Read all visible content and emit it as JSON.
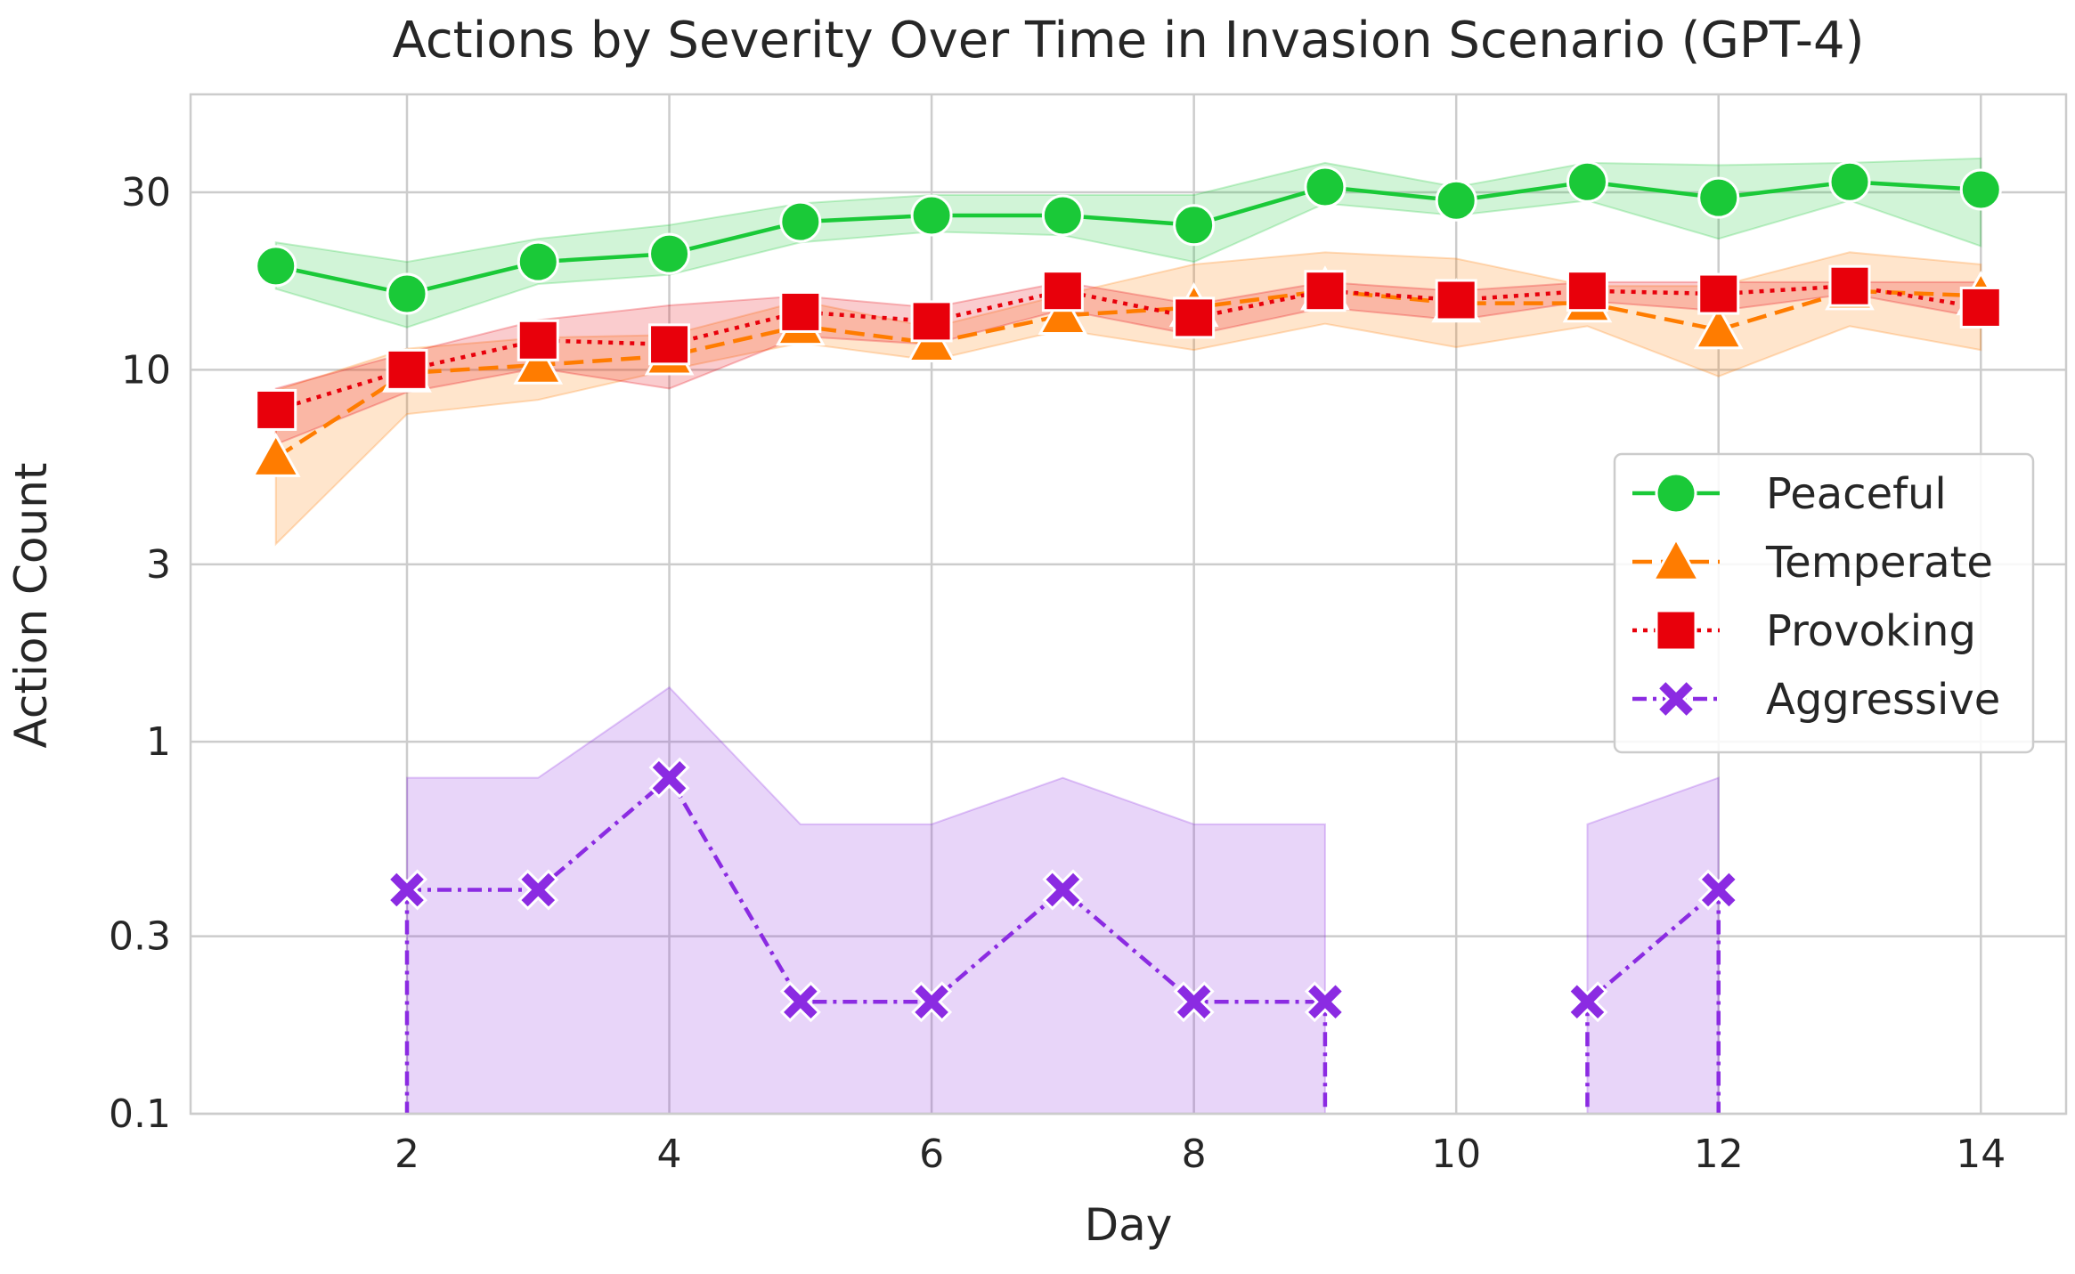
{
  "chart_data": {
    "type": "line",
    "title": "Actions by Severity Over Time in Invasion Scenario (GPT-4)",
    "xlabel": "Day",
    "ylabel": "Action Count",
    "yscale": "log",
    "xlim": [
      0.35,
      14.65
    ],
    "ylim": [
      0.1,
      55
    ],
    "xticks": [
      2,
      4,
      6,
      8,
      10,
      12,
      14
    ],
    "xtick_labels": [
      "2",
      "4",
      "6",
      "8",
      "10",
      "12",
      "14"
    ],
    "yticks": [
      0.1,
      0.3,
      1,
      3,
      10,
      30
    ],
    "ytick_labels": [
      "0.1",
      "0.3",
      "1",
      "3",
      "10",
      "30"
    ],
    "grid": true,
    "legend_position": "center-right",
    "x": [
      1,
      2,
      3,
      4,
      5,
      6,
      7,
      8,
      9,
      10,
      11,
      12,
      13,
      14
    ],
    "series": [
      {
        "name": "Peaceful",
        "color": "#1ac938",
        "line_style": "solid",
        "marker": "circle",
        "values": [
          19,
          16,
          19.5,
          20.5,
          25,
          26,
          26,
          24.5,
          31,
          28.5,
          32,
          29,
          32,
          30.5
        ],
        "ci_low": [
          16.5,
          13,
          17,
          18,
          22,
          23.5,
          23,
          19.5,
          28,
          26,
          28.5,
          22.5,
          28.5,
          21.5
        ],
        "ci_high": [
          22,
          19.5,
          22.5,
          24.5,
          28,
          29.5,
          29.5,
          29.5,
          36,
          31,
          36,
          35.5,
          36,
          37
        ]
      },
      {
        "name": "Temperate",
        "color": "#ff7c00",
        "line_style": "dashed",
        "marker": "triangle",
        "values": [
          5.8,
          9.8,
          10.3,
          10.9,
          13.1,
          11.8,
          14,
          14.7,
          16.3,
          15.1,
          15.1,
          12.8,
          16.3,
          15.8
        ],
        "ci_low": [
          3.4,
          7.6,
          8.3,
          10,
          11.8,
          10.6,
          12.8,
          11.3,
          13.3,
          11.5,
          13.1,
          9.6,
          13.1,
          11.3
        ],
        "ci_high": [
          8.8,
          11.4,
          12.2,
          12.4,
          15.3,
          13,
          15.9,
          19.2,
          20.7,
          19.9,
          16.8,
          16.8,
          20.7,
          19.2
        ]
      },
      {
        "name": "Provoking",
        "color": "#e8000b",
        "line_style": "dotted",
        "marker": "square",
        "values": [
          7.8,
          10,
          12,
          11.7,
          14.3,
          13.5,
          16.3,
          13.8,
          16.3,
          15.4,
          16.3,
          16,
          16.8,
          14.7
        ],
        "ci_low": [
          6.3,
          8.7,
          10.1,
          8.9,
          12.3,
          11.7,
          14.5,
          12.4,
          14.7,
          13.6,
          15.3,
          14.4,
          16,
          13.8
        ],
        "ci_high": [
          8.9,
          11.1,
          13.6,
          14.9,
          15.8,
          14.7,
          17.2,
          15,
          17.2,
          16.3,
          17.2,
          17.2,
          17.2,
          17.2
        ]
      },
      {
        "name": "Aggressive",
        "color": "#8b2be2",
        "line_style": "dashdot",
        "marker": "x",
        "values": [
          null,
          0.4,
          0.4,
          0.8,
          0.2,
          0.2,
          0.4,
          0.2,
          0.2,
          null,
          0.2,
          0.4,
          null,
          null
        ],
        "ci_low": [
          null,
          0.0,
          0.0,
          0.0,
          0.0,
          0.0,
          0.0,
          0.0,
          0.0,
          null,
          0.0,
          0.0,
          null,
          null
        ],
        "ci_high": [
          null,
          0.8,
          0.8,
          1.4,
          0.6,
          0.6,
          0.8,
          0.6,
          0.6,
          null,
          0.6,
          0.8,
          null,
          null
        ]
      }
    ]
  }
}
